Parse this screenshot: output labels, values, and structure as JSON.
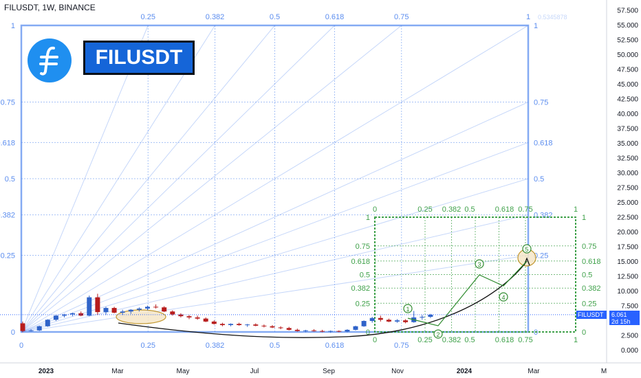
{
  "header": {
    "title": "FILUSDT, 1W, BINANCE"
  },
  "symbol_box": {
    "label": "FILUSDT"
  },
  "price_tag": {
    "label": "FILUSDT"
  },
  "current_price": {
    "value": "6.061",
    "countdown": "2d 15h"
  },
  "colors": {
    "up": "#2f63c9",
    "down": "#b71c1c",
    "gann_blue": "#5b8def",
    "gann_green": "#3fa14a",
    "wave_green": "#2e8b2e",
    "arc_black": "#111111",
    "highlight_fill": "#f6e7c8",
    "highlight_stroke": "#b8860b",
    "logo_bg": "#1f8ff0"
  },
  "icons": {
    "logo": "filecoin-logo-icon"
  },
  "chart_data": {
    "type": "candlestick",
    "title": "FILUSDT, 1W, BINANCE",
    "ylim": [
      0,
      58
    ],
    "y_ticks": [
      0.0,
      2.5,
      5.0,
      7.5,
      10.0,
      12.5,
      15.0,
      17.5,
      20.0,
      22.5,
      25.0,
      27.5,
      30.0,
      32.5,
      35.0,
      37.5,
      40.0,
      42.5,
      45.0,
      47.5,
      50.0,
      52.5,
      55.0,
      57.5
    ],
    "y_tick_labels": [
      "0.000",
      "2.500",
      "5.000",
      "7.500",
      "10.000",
      "12.500",
      "15.000",
      "17.500",
      "20.000",
      "22.500",
      "25.000",
      "27.500",
      "30.000",
      "32.500",
      "35.000",
      "37.500",
      "40.000",
      "42.500",
      "45.000",
      "47.500",
      "50.000",
      "52.500",
      "55.000",
      "57.500"
    ],
    "x_tick_labels": [
      "2023",
      "Mar",
      "May",
      "Jul",
      "Sep",
      "Nov",
      "2024",
      "Mar",
      "M"
    ],
    "bold_x_ticks": [
      "2023",
      "2024"
    ],
    "candles": [
      [
        4.6,
        4.9,
        3.1,
        3.3
      ],
      [
        3.3,
        3.6,
        3.2,
        3.4
      ],
      [
        3.4,
        4.2,
        3.3,
        4.1
      ],
      [
        4.1,
        5.3,
        4.0,
        5.2
      ],
      [
        5.2,
        6.0,
        5.0,
        5.9
      ],
      [
        5.9,
        6.2,
        5.6,
        6.1
      ],
      [
        6.1,
        6.4,
        5.8,
        6.3
      ],
      [
        6.3,
        6.6,
        5.8,
        5.9
      ],
      [
        5.9,
        9.3,
        5.8,
        9.0
      ],
      [
        9.0,
        9.6,
        6.0,
        6.5
      ],
      [
        6.5,
        7.4,
        6.0,
        7.2
      ],
      [
        7.2,
        7.4,
        6.3,
        6.4
      ],
      [
        6.4,
        6.9,
        6.0,
        6.6
      ],
      [
        6.6,
        7.0,
        6.2,
        6.9
      ],
      [
        6.9,
        7.3,
        6.6,
        7.1
      ],
      [
        7.1,
        7.6,
        6.8,
        7.4
      ],
      [
        7.4,
        7.8,
        7.1,
        7.3
      ],
      [
        7.3,
        7.5,
        6.5,
        6.6
      ],
      [
        6.6,
        6.8,
        5.9,
        6.1
      ],
      [
        6.1,
        6.3,
        5.6,
        5.8
      ],
      [
        5.8,
        6.0,
        5.3,
        5.6
      ],
      [
        5.6,
        5.9,
        5.2,
        5.4
      ],
      [
        5.4,
        5.6,
        4.8,
        4.9
      ],
      [
        4.9,
        5.1,
        4.4,
        4.5
      ],
      [
        4.5,
        4.7,
        4.1,
        4.3
      ],
      [
        4.3,
        4.6,
        4.1,
        4.5
      ],
      [
        4.5,
        4.7,
        4.2,
        4.3
      ],
      [
        4.3,
        4.5,
        4.0,
        4.4
      ],
      [
        4.4,
        4.6,
        4.1,
        4.2
      ],
      [
        4.2,
        4.4,
        3.9,
        4.1
      ],
      [
        4.1,
        4.3,
        3.8,
        3.9
      ],
      [
        3.9,
        4.1,
        3.6,
        3.8
      ],
      [
        3.8,
        4.0,
        3.4,
        3.5
      ],
      [
        3.5,
        3.7,
        3.2,
        3.3
      ],
      [
        3.3,
        3.5,
        3.1,
        3.4
      ],
      [
        3.4,
        3.6,
        3.2,
        3.3
      ],
      [
        3.3,
        3.5,
        3.1,
        3.2
      ],
      [
        3.2,
        3.4,
        3.0,
        3.3
      ],
      [
        3.3,
        3.4,
        3.1,
        3.2
      ],
      [
        3.2,
        3.6,
        3.1,
        3.5
      ],
      [
        3.5,
        4.2,
        3.4,
        4.1
      ],
      [
        4.1,
        5.1,
        4.0,
        5.0
      ],
      [
        5.0,
        5.7,
        4.7,
        5.5
      ],
      [
        5.5,
        5.9,
        4.9,
        5.2
      ],
      [
        5.2,
        5.4,
        4.8,
        4.9
      ],
      [
        4.9,
        5.3,
        4.7,
        5.1
      ],
      [
        5.1,
        5.3,
        4.6,
        4.8
      ],
      [
        4.8,
        6.7,
        4.7,
        5.6
      ],
      [
        5.6,
        6.0,
        5.2,
        5.7
      ],
      [
        5.7,
        6.2,
        5.5,
        6.061
      ]
    ],
    "gann_fan_primary": {
      "levels_top": [
        "0.25",
        "0.382",
        "0.5",
        "0.618",
        "0.75",
        "1"
      ],
      "levels_side": [
        "1",
        "0.75",
        "0.618",
        "0.5",
        "0.382",
        "0.25",
        "0"
      ],
      "top_right_label": "0.5345878",
      "faint_top_left": "0.5345878"
    },
    "gann_box_secondary": {
      "levels_top": [
        "0",
        "0.25",
        "0.382",
        "0.5",
        "0.618",
        "0.75",
        "1"
      ],
      "levels_side": [
        "1",
        "0.75",
        "0.618",
        "0.5",
        "0.382",
        "0.25",
        "0"
      ]
    },
    "wave_labels": [
      "1",
      "2",
      "3",
      "4",
      "5"
    ]
  }
}
